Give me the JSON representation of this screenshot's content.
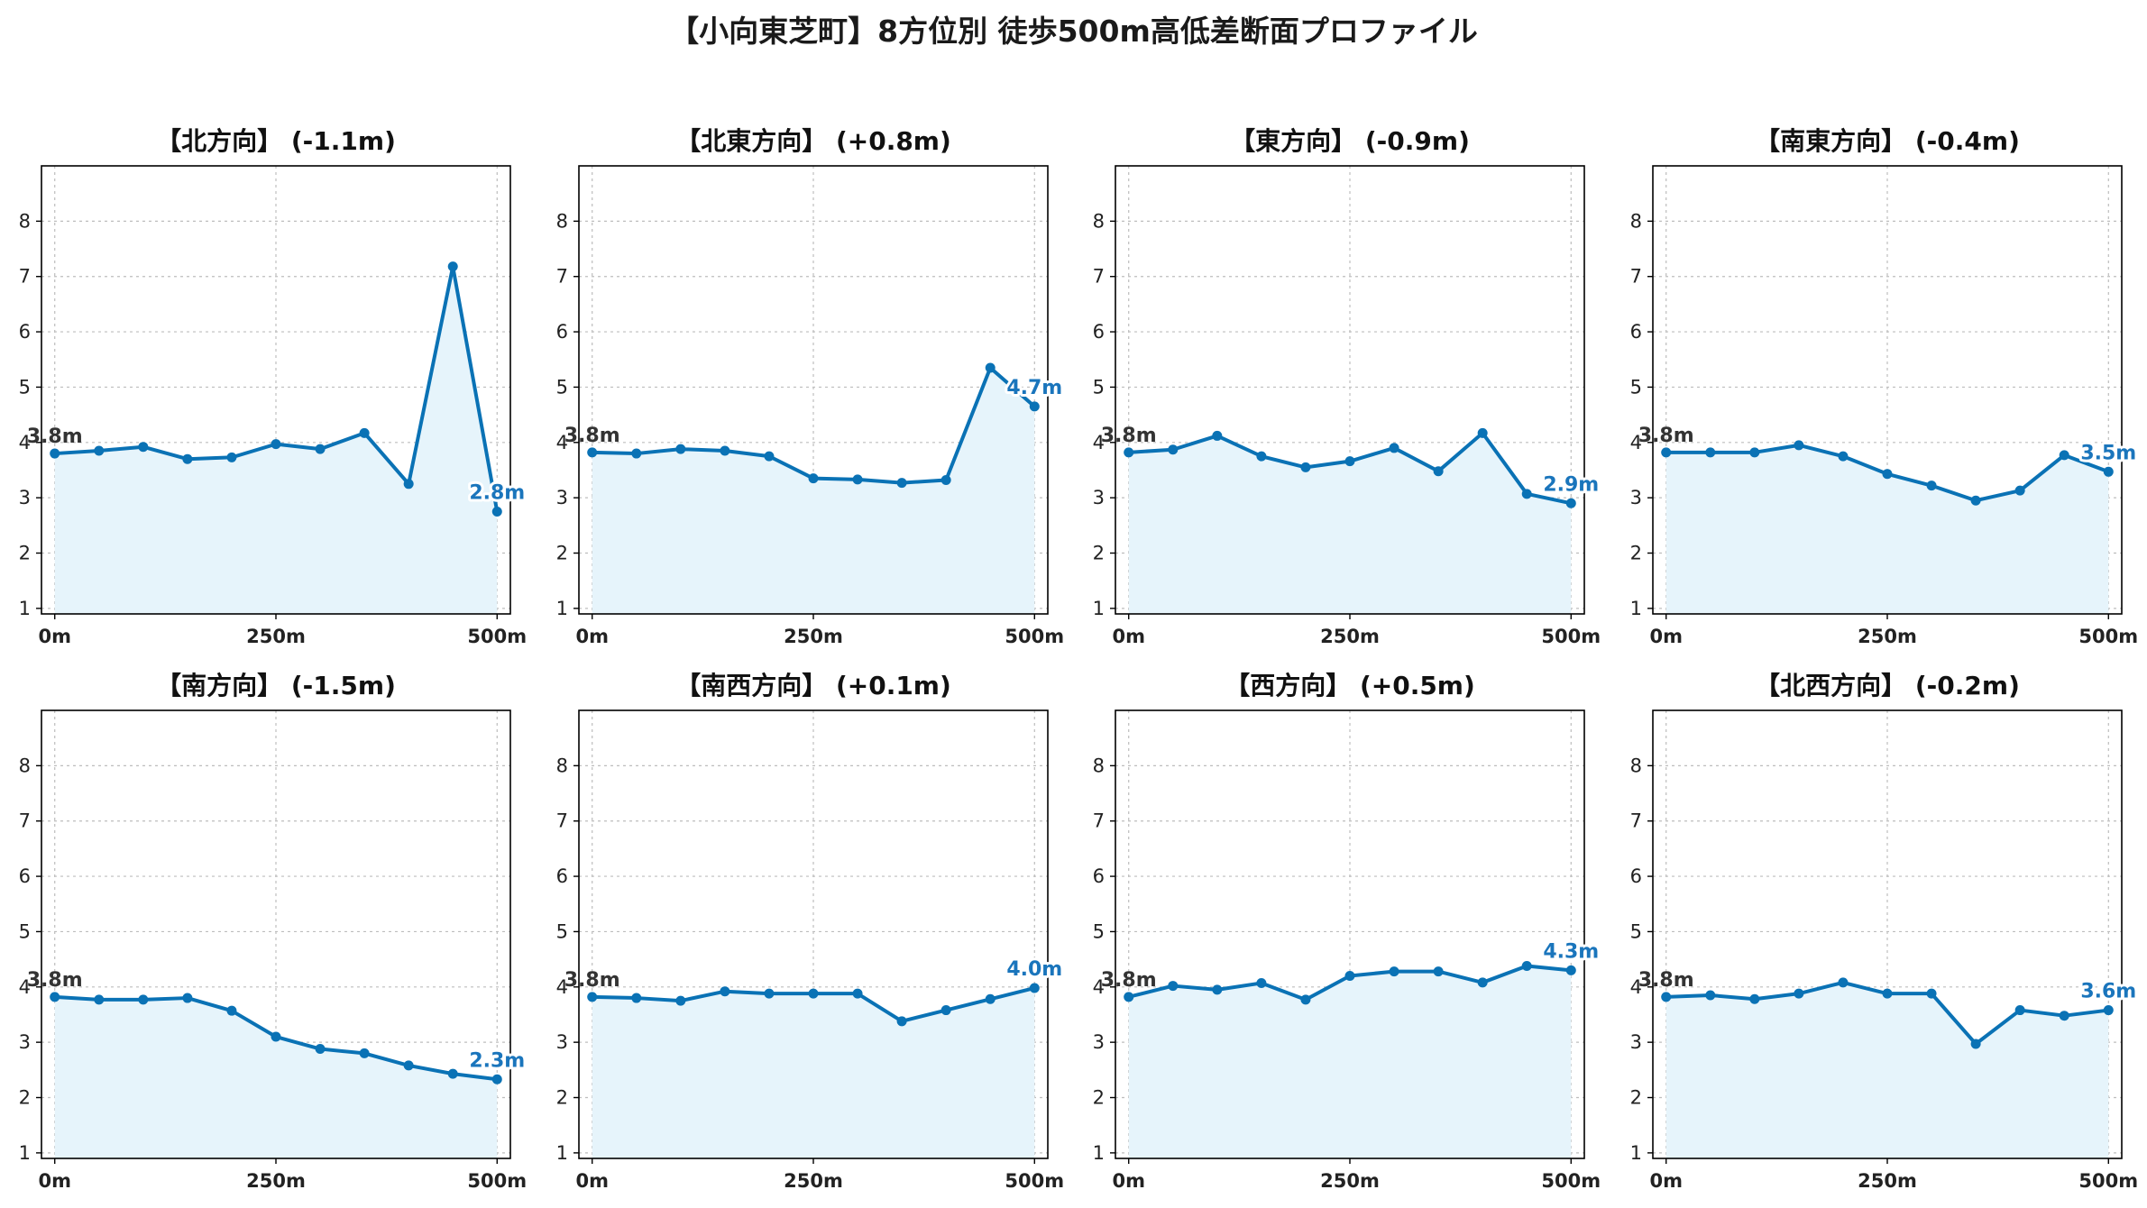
{
  "title": "【小向東芝町】8方位別 徒歩500m高低差断面プロファイル",
  "colors": {
    "line": "#0a72b5",
    "fill": "#e6f4fb",
    "endLabel": "#1a75bc",
    "startLabel": "#333333"
  },
  "chart_data": [
    {
      "type": "area",
      "title": "【北方向】 (-1.1m)",
      "x": [
        0,
        50,
        100,
        150,
        200,
        250,
        300,
        350,
        400,
        450,
        500
      ],
      "y": [
        3.8,
        3.85,
        3.92,
        3.7,
        3.73,
        3.97,
        3.88,
        4.17,
        3.25,
        7.18,
        2.75
      ],
      "start_label": "3.8m",
      "end_label": "2.8m",
      "xticks": [
        "0m",
        "250m",
        "500m"
      ],
      "yticks": [
        1,
        2,
        3,
        4,
        5,
        6,
        7,
        8
      ],
      "ylim": [
        0.9,
        9.0
      ],
      "xlim": [
        -15,
        515
      ],
      "grid": true
    },
    {
      "type": "area",
      "title": "【北東方向】 (+0.8m)",
      "x": [
        0,
        50,
        100,
        150,
        200,
        250,
        300,
        350,
        400,
        450,
        500
      ],
      "y": [
        3.82,
        3.8,
        3.88,
        3.85,
        3.75,
        3.35,
        3.33,
        3.27,
        3.32,
        5.35,
        4.65
      ],
      "start_label": "3.8m",
      "end_label": "4.7m",
      "xticks": [
        "0m",
        "250m",
        "500m"
      ],
      "yticks": [
        1,
        2,
        3,
        4,
        5,
        6,
        7,
        8
      ],
      "ylim": [
        0.9,
        9.0
      ],
      "xlim": [
        -15,
        515
      ],
      "grid": true
    },
    {
      "type": "area",
      "title": "【東方向】 (-0.9m)",
      "x": [
        0,
        50,
        100,
        150,
        200,
        250,
        300,
        350,
        400,
        450,
        500
      ],
      "y": [
        3.82,
        3.87,
        4.12,
        3.75,
        3.55,
        3.66,
        3.9,
        3.48,
        4.17,
        3.07,
        2.9
      ],
      "start_label": "3.8m",
      "end_label": "2.9m",
      "xticks": [
        "0m",
        "250m",
        "500m"
      ],
      "yticks": [
        1,
        2,
        3,
        4,
        5,
        6,
        7,
        8
      ],
      "ylim": [
        0.9,
        9.0
      ],
      "xlim": [
        -15,
        515
      ],
      "grid": true
    },
    {
      "type": "area",
      "title": "【南東方向】 (-0.4m)",
      "x": [
        0,
        50,
        100,
        150,
        200,
        250,
        300,
        350,
        400,
        450,
        500
      ],
      "y": [
        3.82,
        3.82,
        3.82,
        3.95,
        3.75,
        3.43,
        3.22,
        2.95,
        3.13,
        3.77,
        3.47
      ],
      "start_label": "3.8m",
      "end_label": "3.5m",
      "xticks": [
        "0m",
        "250m",
        "500m"
      ],
      "yticks": [
        1,
        2,
        3,
        4,
        5,
        6,
        7,
        8
      ],
      "ylim": [
        0.9,
        9.0
      ],
      "xlim": [
        -15,
        515
      ],
      "grid": true
    },
    {
      "type": "area",
      "title": "【南方向】 (-1.5m)",
      "x": [
        0,
        50,
        100,
        150,
        200,
        250,
        300,
        350,
        400,
        450,
        500
      ],
      "y": [
        3.82,
        3.77,
        3.77,
        3.8,
        3.57,
        3.1,
        2.88,
        2.8,
        2.58,
        2.43,
        2.33
      ],
      "start_label": "3.8m",
      "end_label": "2.3m",
      "xticks": [
        "0m",
        "250m",
        "500m"
      ],
      "yticks": [
        1,
        2,
        3,
        4,
        5,
        6,
        7,
        8
      ],
      "ylim": [
        0.9,
        9.0
      ],
      "xlim": [
        -15,
        515
      ],
      "grid": true
    },
    {
      "type": "area",
      "title": "【南西方向】 (+0.1m)",
      "x": [
        0,
        50,
        100,
        150,
        200,
        250,
        300,
        350,
        400,
        450,
        500
      ],
      "y": [
        3.82,
        3.8,
        3.75,
        3.92,
        3.88,
        3.88,
        3.88,
        3.38,
        3.58,
        3.78,
        3.98
      ],
      "start_label": "3.8m",
      "end_label": "4.0m",
      "xticks": [
        "0m",
        "250m",
        "500m"
      ],
      "yticks": [
        1,
        2,
        3,
        4,
        5,
        6,
        7,
        8
      ],
      "ylim": [
        0.9,
        9.0
      ],
      "xlim": [
        -15,
        515
      ],
      "grid": true
    },
    {
      "type": "area",
      "title": "【西方向】 (+0.5m)",
      "x": [
        0,
        50,
        100,
        150,
        200,
        250,
        300,
        350,
        400,
        450,
        500
      ],
      "y": [
        3.82,
        4.02,
        3.95,
        4.07,
        3.77,
        4.2,
        4.28,
        4.28,
        4.08,
        4.38,
        4.3
      ],
      "start_label": "3.8m",
      "end_label": "4.3m",
      "xticks": [
        "0m",
        "250m",
        "500m"
      ],
      "yticks": [
        1,
        2,
        3,
        4,
        5,
        6,
        7,
        8
      ],
      "ylim": [
        0.9,
        9.0
      ],
      "xlim": [
        -15,
        515
      ],
      "grid": true
    },
    {
      "type": "area",
      "title": "【北西方向】 (-0.2m)",
      "x": [
        0,
        50,
        100,
        150,
        200,
        250,
        300,
        350,
        400,
        450,
        500
      ],
      "y": [
        3.82,
        3.85,
        3.78,
        3.88,
        4.08,
        3.88,
        3.88,
        2.97,
        3.58,
        3.48,
        3.58
      ],
      "start_label": "3.8m",
      "end_label": "3.6m",
      "xticks": [
        "0m",
        "250m",
        "500m"
      ],
      "yticks": [
        1,
        2,
        3,
        4,
        5,
        6,
        7,
        8
      ],
      "ylim": [
        0.9,
        9.0
      ],
      "xlim": [
        -15,
        515
      ],
      "grid": true
    }
  ]
}
